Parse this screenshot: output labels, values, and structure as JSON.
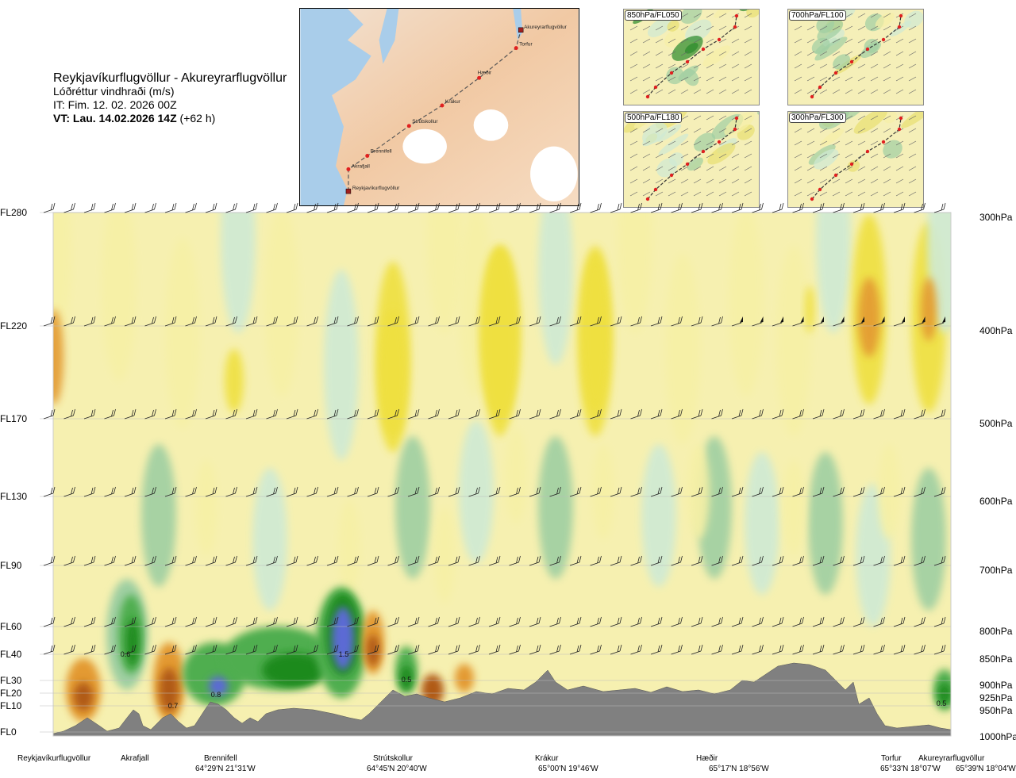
{
  "title": {
    "route": "Reykjavíkurflugvöllur - Akureyrarflugvöllur",
    "variable": "Lóðréttur vindhraði (m/s)",
    "it": "IT: Fim. 12. 02. 2026 00Z",
    "vt_bold": "VT: Lau. 14.02.2026 14Z",
    "vt_offset": " (+62 h)"
  },
  "map": {
    "route_points": [
      "Akureyrarflugvöllur",
      "Torfur",
      "Hæðir",
      "Krákur",
      "Strútskollur",
      "Brennifell",
      "Akrafjall",
      "Reykjavíkurflugvöllur"
    ]
  },
  "panels": [
    "850hPa/FL050",
    "700hPa/FL100",
    "500hPa/FL180",
    "300hPa/FL300"
  ],
  "chart_data": {
    "type": "heatmap",
    "title": "Lóðréttur vindhraði (m/s)",
    "y_fl_labels": [
      "FL280",
      "FL220",
      "FL170",
      "FL130",
      "FL90",
      "FL60",
      "FL40",
      "FL30",
      "FL20",
      "FL10",
      "FL0"
    ],
    "y_hpa_labels": [
      "300hPa",
      "400hPa",
      "500hPa",
      "600hPa",
      "700hPa",
      "800hPa",
      "850hPa",
      "900hPa",
      "925hPa",
      "950hPa",
      "1000hPa"
    ],
    "waypoints": [
      {
        "name": "Reykjavíkurflugvöllur",
        "coord": ""
      },
      {
        "name": "Akrafjall",
        "coord": ""
      },
      {
        "name": "Brennifell",
        "coord": "64°29'N 21°31'W"
      },
      {
        "name": "Strútskollur",
        "coord": "64°45'N 20°40'W"
      },
      {
        "name": "Krákur",
        "coord": "65°00'N 19°46'W"
      },
      {
        "name": "Hæðir",
        "coord": "65°17'N 18°56'W"
      },
      {
        "name": "Torfur",
        "coord": "65°33'N 18°07'W"
      },
      {
        "name": "Akureyrarflugvöllur",
        "coord": "65°39'N 18°04'W"
      }
    ],
    "contour_labels": [
      "0.6",
      "0.7",
      "0.8",
      "1.5",
      "0.5",
      "0.5"
    ],
    "colors": {
      "terrain": "#808080",
      "strong_down": "#b05a18",
      "mod_down": "#e39a30",
      "weak_down": "#efe040",
      "light_down": "#f6f0a6",
      "calm": "#f6fbe8",
      "light_up": "#cfead4",
      "weak_up": "#9fcfa2",
      "mod_up": "#4fae4f",
      "strong_up": "#1c8a1c",
      "very_strong_up": "#5b6ad4"
    }
  }
}
